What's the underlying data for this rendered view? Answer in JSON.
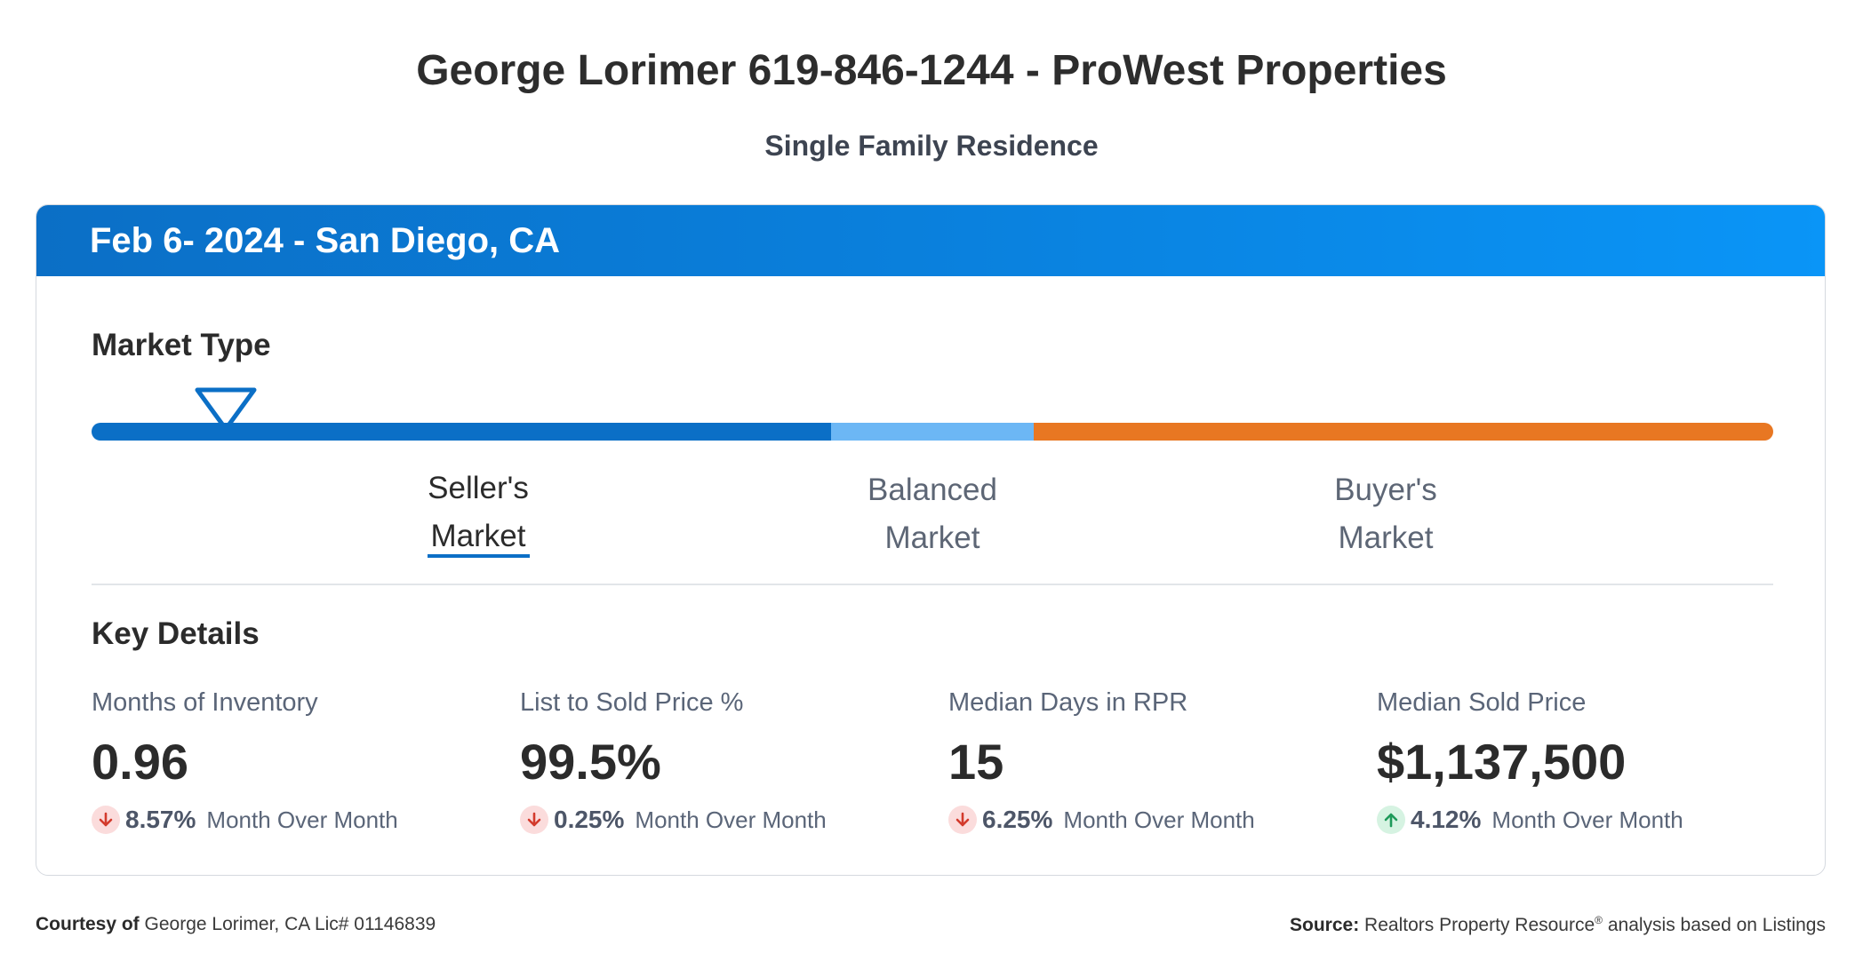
{
  "header": {
    "title": "George Lorimer 619-846-1244 - ProWest Properties",
    "subtitle": "Single Family Residence"
  },
  "card": {
    "title": "Feb 6- 2024 - San Diego, CA",
    "market_type": {
      "heading": "Market Type",
      "labels": [
        {
          "line1": "Seller's",
          "line2": "Market",
          "active": true
        },
        {
          "line1": "Balanced",
          "line2": "Market",
          "active": false
        },
        {
          "line1": "Buyer's",
          "line2": "Market",
          "active": false
        }
      ],
      "colors": {
        "seller": "#0b6fc6",
        "balanced": "#6cb7f5",
        "buyer": "#e87722"
      },
      "indicator_position": 0.08
    },
    "key_details": {
      "heading": "Key Details",
      "metrics": [
        {
          "label": "Months of Inventory",
          "value": "0.96",
          "change": "8.57%",
          "direction": "down",
          "suffix": "Month Over Month"
        },
        {
          "label": "List to Sold Price %",
          "value": "99.5%",
          "change": "0.25%",
          "direction": "down",
          "suffix": "Month Over Month"
        },
        {
          "label": "Median Days in RPR",
          "value": "15",
          "change": "6.25%",
          "direction": "down",
          "suffix": "Month Over Month"
        },
        {
          "label": "Median Sold Price",
          "value": "$1,137,500",
          "change": "4.12%",
          "direction": "up",
          "suffix": "Month Over Month"
        }
      ]
    }
  },
  "footer": {
    "courtesy_label": "Courtesy of",
    "courtesy_text": "George Lorimer, CA Lic# 01146839",
    "source_label": "Source:",
    "source_text_1": "Realtors Property Resource",
    "source_reg": "®",
    "source_text_2": " analysis based on Listings"
  }
}
